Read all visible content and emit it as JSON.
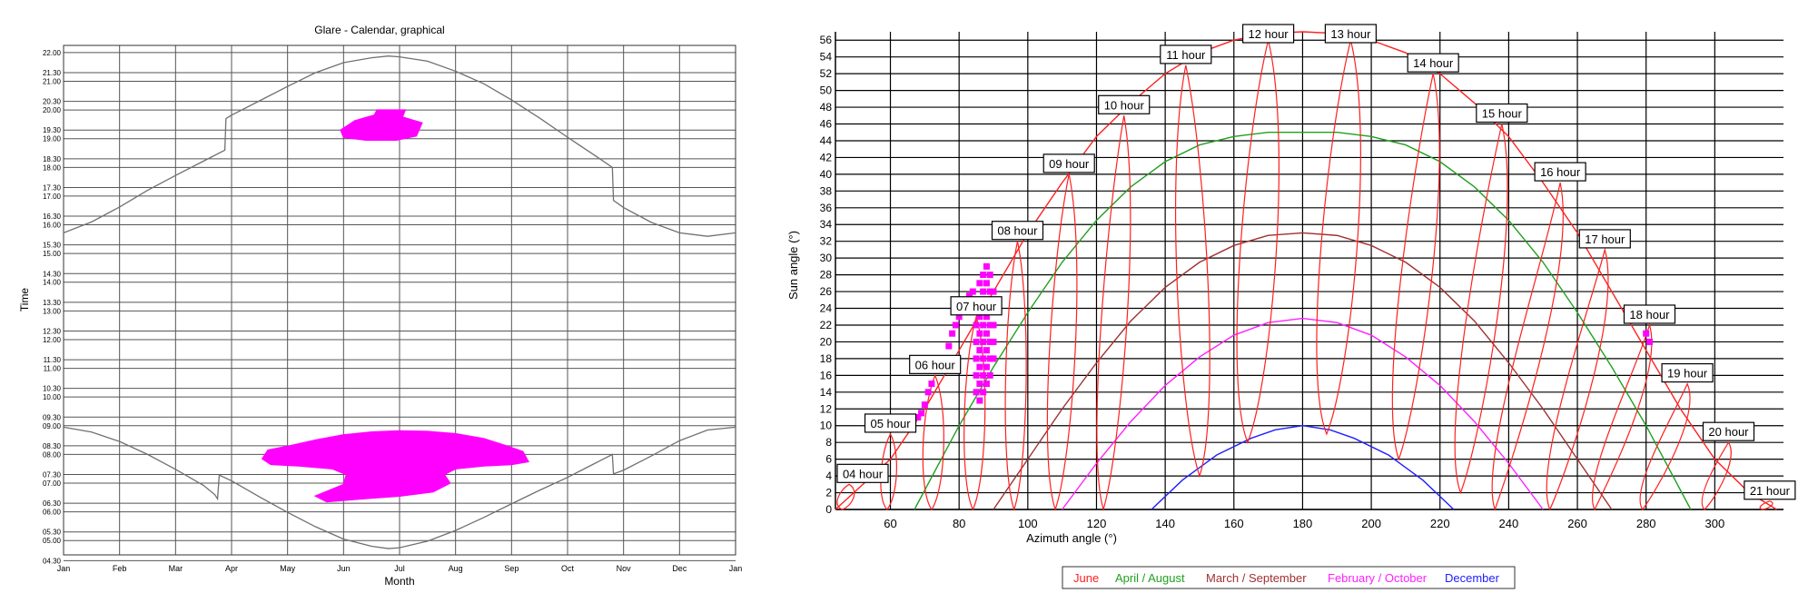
{
  "chart_data": [
    {
      "type": "area",
      "title": "Glare - Calendar, graphical",
      "xlabel": "Month",
      "ylabel": "Time",
      "x_ticks": [
        "Jan",
        "Feb",
        "Mar",
        "Apr",
        "May",
        "Jun",
        "Jul",
        "Aug",
        "Sep",
        "Oct",
        "Nov",
        "Dec",
        "Jan"
      ],
      "y_ticks": [
        "04.30",
        "05.00",
        "05.30",
        "06.00",
        "06.30",
        "07.00",
        "07.30",
        "08.00",
        "08.30",
        "09.00",
        "09.30",
        "10.00",
        "10.30",
        "11.00",
        "11.30",
        "12.00",
        "12.30",
        "13.00",
        "13.30",
        "14.00",
        "14.30",
        "15.00",
        "15.30",
        "16.00",
        "16.30",
        "17.00",
        "17.30",
        "18.00",
        "18.30",
        "19.00",
        "19.30",
        "20.00",
        "20.30",
        "21.00",
        "21.30",
        "22.00"
      ],
      "xlim": [
        0,
        12
      ],
      "ylim": [
        4.5,
        22.25
      ],
      "grid": true,
      "line_color": "#707070",
      "glare_color": "#ff00ff",
      "sunset_curve": [
        [
          0,
          15.72
        ],
        [
          0.5,
          16.1
        ],
        [
          1,
          16.62
        ],
        [
          1.5,
          17.2
        ],
        [
          2,
          17.72
        ],
        [
          2.5,
          18.22
        ],
        [
          2.88,
          18.6
        ],
        [
          2.9,
          19.7
        ],
        [
          3,
          19.82
        ],
        [
          3.5,
          20.32
        ],
        [
          4,
          20.82
        ],
        [
          4.5,
          21.3
        ],
        [
          5,
          21.65
        ],
        [
          5.5,
          21.82
        ],
        [
          5.8,
          21.88
        ],
        [
          6,
          21.85
        ],
        [
          6.5,
          21.7
        ],
        [
          7,
          21.35
        ],
        [
          7.5,
          20.92
        ],
        [
          8,
          20.35
        ],
        [
          8.5,
          19.72
        ],
        [
          9,
          19.05
        ],
        [
          9.5,
          18.4
        ],
        [
          9.8,
          18.0
        ],
        [
          9.82,
          16.85
        ],
        [
          10,
          16.6
        ],
        [
          10.5,
          16.08
        ],
        [
          11,
          15.72
        ],
        [
          11.5,
          15.6
        ],
        [
          12,
          15.72
        ]
      ],
      "sunrise_curve": [
        [
          0,
          8.95
        ],
        [
          0.5,
          8.78
        ],
        [
          1,
          8.45
        ],
        [
          1.5,
          8.0
        ],
        [
          2,
          7.48
        ],
        [
          2.5,
          6.92
        ],
        [
          2.7,
          6.6
        ],
        [
          2.75,
          6.45
        ],
        [
          2.78,
          7.28
        ],
        [
          3,
          7.08
        ],
        [
          3.5,
          6.52
        ],
        [
          4,
          5.98
        ],
        [
          4.5,
          5.48
        ],
        [
          5,
          5.05
        ],
        [
          5.5,
          4.8
        ],
        [
          5.8,
          4.72
        ],
        [
          6,
          4.75
        ],
        [
          6.5,
          4.98
        ],
        [
          7,
          5.35
        ],
        [
          7.5,
          5.8
        ],
        [
          8,
          6.28
        ],
        [
          8.5,
          6.75
        ],
        [
          9,
          7.2
        ],
        [
          9.5,
          7.7
        ],
        [
          9.8,
          8.0
        ],
        [
          9.82,
          7.32
        ],
        [
          10,
          7.45
        ],
        [
          10.5,
          7.95
        ],
        [
          11,
          8.48
        ],
        [
          11.5,
          8.85
        ],
        [
          12,
          8.95
        ]
      ],
      "glare_regions": [
        [
          [
            4.95,
            19.3
          ],
          [
            5.2,
            19.62
          ],
          [
            5.55,
            19.82
          ],
          [
            5.6,
            20.0
          ],
          [
            6.1,
            20.0
          ],
          [
            6.05,
            19.75
          ],
          [
            6.4,
            19.55
          ],
          [
            6.3,
            19.1
          ],
          [
            5.95,
            18.95
          ],
          [
            5.4,
            18.95
          ],
          [
            5.0,
            19.05
          ]
        ],
        [
          [
            3.55,
            7.85
          ],
          [
            3.65,
            8.15
          ],
          [
            4.0,
            8.28
          ],
          [
            4.5,
            8.5
          ],
          [
            5.0,
            8.68
          ],
          [
            5.5,
            8.78
          ],
          [
            6.0,
            8.82
          ],
          [
            6.5,
            8.8
          ],
          [
            7.0,
            8.72
          ],
          [
            7.5,
            8.55
          ],
          [
            7.9,
            8.3
          ],
          [
            8.2,
            8.1
          ],
          [
            8.3,
            7.75
          ],
          [
            8.0,
            7.65
          ],
          [
            7.5,
            7.6
          ],
          [
            7.0,
            7.5
          ],
          [
            6.8,
            7.3
          ],
          [
            6.9,
            7.0
          ],
          [
            6.6,
            6.7
          ],
          [
            6.0,
            6.55
          ],
          [
            5.3,
            6.45
          ],
          [
            4.7,
            6.35
          ],
          [
            4.5,
            6.55
          ],
          [
            5.0,
            6.95
          ],
          [
            5.05,
            7.3
          ],
          [
            4.8,
            7.5
          ],
          [
            4.2,
            7.6
          ],
          [
            3.7,
            7.65
          ]
        ]
      ]
    },
    {
      "type": "line",
      "xlabel": "Azimuth angle (°)",
      "ylabel": "Sun angle (°)",
      "x_ticks": [
        "60",
        "80",
        "100",
        "120",
        "140",
        "160",
        "180",
        "200",
        "220",
        "240",
        "260",
        "280",
        "300"
      ],
      "y_ticks": [
        "0",
        "2",
        "4",
        "6",
        "8",
        "10",
        "12",
        "14",
        "16",
        "18",
        "20",
        "22",
        "24",
        "26",
        "28",
        "30",
        "32",
        "34",
        "36",
        "38",
        "40",
        "42",
        "44",
        "46",
        "48",
        "50",
        "52",
        "54",
        "56"
      ],
      "xlim": [
        44,
        320
      ],
      "ylim": [
        0,
        57
      ],
      "grid": true,
      "legend_position": "bottom",
      "series": [
        {
          "name": "June",
          "color": "#ff2020",
          "x": [
            44,
            60,
            70,
            80,
            90,
            100,
            110,
            120,
            130,
            140,
            150,
            160,
            170,
            180,
            190,
            200,
            210,
            220,
            230,
            240,
            250,
            260,
            270,
            280,
            290,
            300,
            310,
            318
          ],
          "y": [
            0,
            6,
            12,
            19,
            26,
            33,
            39,
            44.5,
            48.5,
            52,
            54.5,
            56,
            56.8,
            57,
            56.8,
            56,
            54.5,
            52,
            48.5,
            44.5,
            39,
            33,
            26,
            19,
            12,
            6,
            2,
            0
          ]
        },
        {
          "name": "April / August",
          "color": "#20a020",
          "x": [
            67,
            80,
            90,
            100,
            110,
            120,
            130,
            140,
            150,
            160,
            170,
            180,
            190,
            200,
            210,
            220,
            230,
            240,
            250,
            260,
            270,
            280,
            293
          ],
          "y": [
            0,
            10,
            17,
            23.5,
            29.5,
            34.5,
            38.5,
            41.5,
            43.5,
            44.5,
            45,
            45,
            45,
            44.5,
            43.5,
            41.5,
            38.5,
            34.5,
            29.5,
            23.5,
            17,
            10,
            0
          ]
        },
        {
          "name": "March / September",
          "color": "#a03030",
          "x": [
            90,
            100,
            110,
            120,
            130,
            140,
            150,
            160,
            170,
            180,
            190,
            200,
            210,
            220,
            230,
            240,
            250,
            260,
            270
          ],
          "y": [
            0,
            6,
            12,
            17.5,
            22.5,
            26.5,
            29.5,
            31.5,
            32.7,
            33,
            32.7,
            31.5,
            29.5,
            26.5,
            22.5,
            17.5,
            12,
            6,
            0
          ]
        },
        {
          "name": "February / October",
          "color": "#ff20ff",
          "x": [
            110,
            120,
            130,
            140,
            150,
            160,
            170,
            180,
            190,
            200,
            210,
            220,
            230,
            240,
            250
          ],
          "y": [
            0,
            5.5,
            10.5,
            14.8,
            18.2,
            20.8,
            22.3,
            22.8,
            22.3,
            20.8,
            18.2,
            14.8,
            10.5,
            5.5,
            0
          ]
        },
        {
          "name": "December",
          "color": "#2020ff",
          "x": [
            136,
            145,
            155,
            165,
            172,
            180,
            188,
            195,
            205,
            215,
            224
          ],
          "y": [
            0,
            3.5,
            6.5,
            8.5,
            9.5,
            10,
            9.5,
            8.5,
            6.5,
            3.5,
            0
          ]
        }
      ],
      "hour_loops": [
        {
          "label": "04 hour",
          "top": [
            48,
            3
          ],
          "bottom": [
            46,
            0
          ],
          "rwidth": 3
        },
        {
          "label": "05 hour",
          "top": [
            60,
            9
          ],
          "bottom": [
            59,
            0
          ],
          "rwidth": 3
        },
        {
          "label": "06 hour",
          "top": [
            73,
            16
          ],
          "bottom": [
            72,
            0
          ],
          "rwidth": 4
        },
        {
          "label": "07 hour",
          "top": [
            85,
            23
          ],
          "bottom": [
            84,
            0
          ],
          "rwidth": 4
        },
        {
          "label": "08 hour",
          "top": [
            97,
            32
          ],
          "bottom": [
            96,
            0
          ],
          "rwidth": 4
        },
        {
          "label": "09 hour",
          "top": [
            112,
            40
          ],
          "bottom": [
            108,
            0
          ],
          "rwidth": 5
        },
        {
          "label": "10 hour",
          "top": [
            128,
            47
          ],
          "bottom": [
            122,
            0
          ],
          "rwidth": 5
        },
        {
          "label": "11 hour",
          "top": [
            146,
            53
          ],
          "bottom": [
            150,
            4
          ],
          "rwidth": 6
        },
        {
          "label": "12 hour",
          "top": [
            170,
            56
          ],
          "bottom": [
            164,
            8
          ],
          "rwidth": 7
        },
        {
          "label": "13 hour",
          "top": [
            194,
            56
          ],
          "bottom": [
            187,
            9
          ],
          "rwidth": 7
        },
        {
          "label": "14 hour",
          "top": [
            218,
            52
          ],
          "bottom": [
            208,
            6
          ],
          "rwidth": 6
        },
        {
          "label": "15 hour",
          "top": [
            238,
            46
          ],
          "bottom": [
            226,
            2
          ],
          "rwidth": 6
        },
        {
          "label": "16 hour",
          "top": [
            255,
            39
          ],
          "bottom": [
            236,
            0
          ],
          "rwidth": 5
        },
        {
          "label": "17 hour",
          "top": [
            268,
            31
          ],
          "bottom": [
            252,
            0
          ],
          "rwidth": 5
        },
        {
          "label": "18 hour",
          "top": [
            281,
            22
          ],
          "bottom": [
            265,
            0
          ],
          "rwidth": 4
        },
        {
          "label": "19 hour",
          "top": [
            292,
            15
          ],
          "bottom": [
            279,
            0
          ],
          "rwidth": 4
        },
        {
          "label": "20 hour",
          "top": [
            304,
            8
          ],
          "bottom": [
            297,
            0
          ],
          "rwidth": 3
        },
        {
          "label": "21 hour",
          "top": [
            316,
            1
          ],
          "bottom": [
            314,
            0
          ],
          "rwidth": 2
        }
      ],
      "loop_color": "#ff2020",
      "glare_color": "#ff00ff",
      "glare_points": [
        [
          68,
          11
        ],
        [
          69,
          11.5
        ],
        [
          70,
          12.5
        ],
        [
          71,
          14
        ],
        [
          72,
          15
        ],
        [
          74,
          17
        ],
        [
          75,
          18
        ],
        [
          77,
          19.5
        ],
        [
          78,
          21
        ],
        [
          79,
          22
        ],
        [
          80,
          23
        ],
        [
          81,
          24
        ],
        [
          82,
          25
        ],
        [
          83,
          25.5
        ],
        [
          84,
          26
        ],
        [
          85,
          14
        ],
        [
          85,
          16
        ],
        [
          85,
          18
        ],
        [
          85,
          20
        ],
        [
          85,
          22
        ],
        [
          86,
          13
        ],
        [
          86,
          15
        ],
        [
          86,
          17
        ],
        [
          86,
          19
        ],
        [
          86,
          21
        ],
        [
          86,
          23
        ],
        [
          86,
          25
        ],
        [
          86,
          27
        ],
        [
          87,
          14
        ],
        [
          87,
          16
        ],
        [
          87,
          18
        ],
        [
          87,
          20
        ],
        [
          87,
          22
        ],
        [
          87,
          24
        ],
        [
          87,
          26
        ],
        [
          87,
          28
        ],
        [
          88,
          15
        ],
        [
          88,
          17
        ],
        [
          88,
          19
        ],
        [
          88,
          21
        ],
        [
          88,
          23
        ],
        [
          88,
          25
        ],
        [
          88,
          27
        ],
        [
          88,
          29
        ],
        [
          89,
          16
        ],
        [
          89,
          18
        ],
        [
          89,
          20
        ],
        [
          89,
          22
        ],
        [
          89,
          24
        ],
        [
          89,
          26
        ],
        [
          89,
          28
        ],
        [
          90,
          18
        ],
        [
          90,
          20
        ],
        [
          90,
          22
        ],
        [
          90,
          24
        ],
        [
          90,
          26
        ],
        [
          280,
          21
        ],
        [
          281,
          20
        ]
      ]
    }
  ]
}
